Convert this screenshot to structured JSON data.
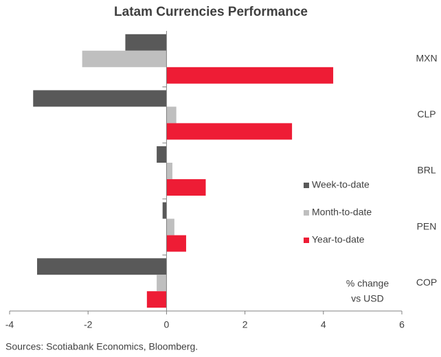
{
  "chart_data": {
    "type": "barh",
    "title": "Latam Currencies Performance",
    "categories": [
      "MXN",
      "CLP",
      "BRL",
      "PEN",
      "COP"
    ],
    "series": [
      {
        "name": "Week-to-date",
        "color": "#595959",
        "values": [
          -1.05,
          -3.4,
          -0.25,
          -0.1,
          -3.3
        ]
      },
      {
        "name": "Month-to-date",
        "color": "#bfbfbf",
        "values": [
          -2.15,
          0.25,
          0.15,
          0.2,
          -0.25
        ]
      },
      {
        "name": "Year-to-date",
        "color": "#ee1c35",
        "values": [
          4.25,
          3.2,
          1.0,
          0.5,
          -0.5
        ]
      }
    ],
    "xlim": [
      -4,
      6
    ],
    "xticks": [
      -4,
      -2,
      0,
      2,
      4,
      6
    ],
    "annotation": [
      "% change",
      "vs USD"
    ],
    "source": "Sources: Scotiabank Economics, Bloomberg."
  }
}
